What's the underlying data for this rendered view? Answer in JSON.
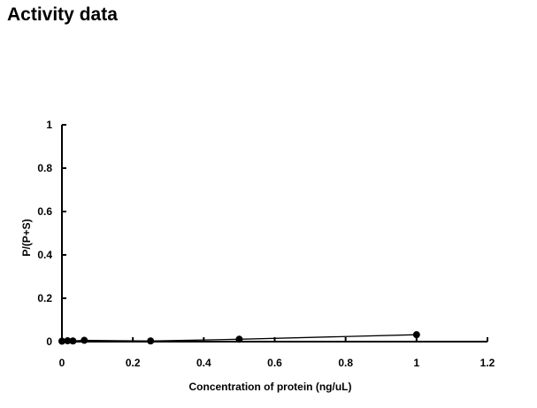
{
  "page": {
    "title": "Activity data"
  },
  "chart_data": {
    "type": "line",
    "title": "",
    "xlabel": "Concentration of protein (ng/uL)",
    "ylabel": "P/(P+S)",
    "xlim": [
      0,
      1.2
    ],
    "ylim": [
      0,
      1
    ],
    "x_ticks": [
      0,
      0.2,
      0.4,
      0.6,
      0.8,
      1,
      1.2
    ],
    "y_ticks": [
      0,
      0.2,
      0.4,
      0.6,
      0.8,
      1
    ],
    "x_tick_labels": [
      "0",
      "0.2",
      "0.4",
      "0.6",
      "0.8",
      "1",
      "1.2"
    ],
    "y_tick_labels": [
      "0",
      "0.2",
      "0.4",
      "0.6",
      "0.8",
      "1"
    ],
    "grid": false,
    "legend": "none",
    "series": [
      {
        "x": [
          0,
          0.016,
          0.031,
          0.063,
          0.25,
          0.5,
          1
        ],
        "y": [
          0.002,
          0.004,
          0.003,
          0.006,
          0.003,
          0.011,
          0.032
        ],
        "marker": "circle",
        "color": "#000000"
      }
    ]
  }
}
